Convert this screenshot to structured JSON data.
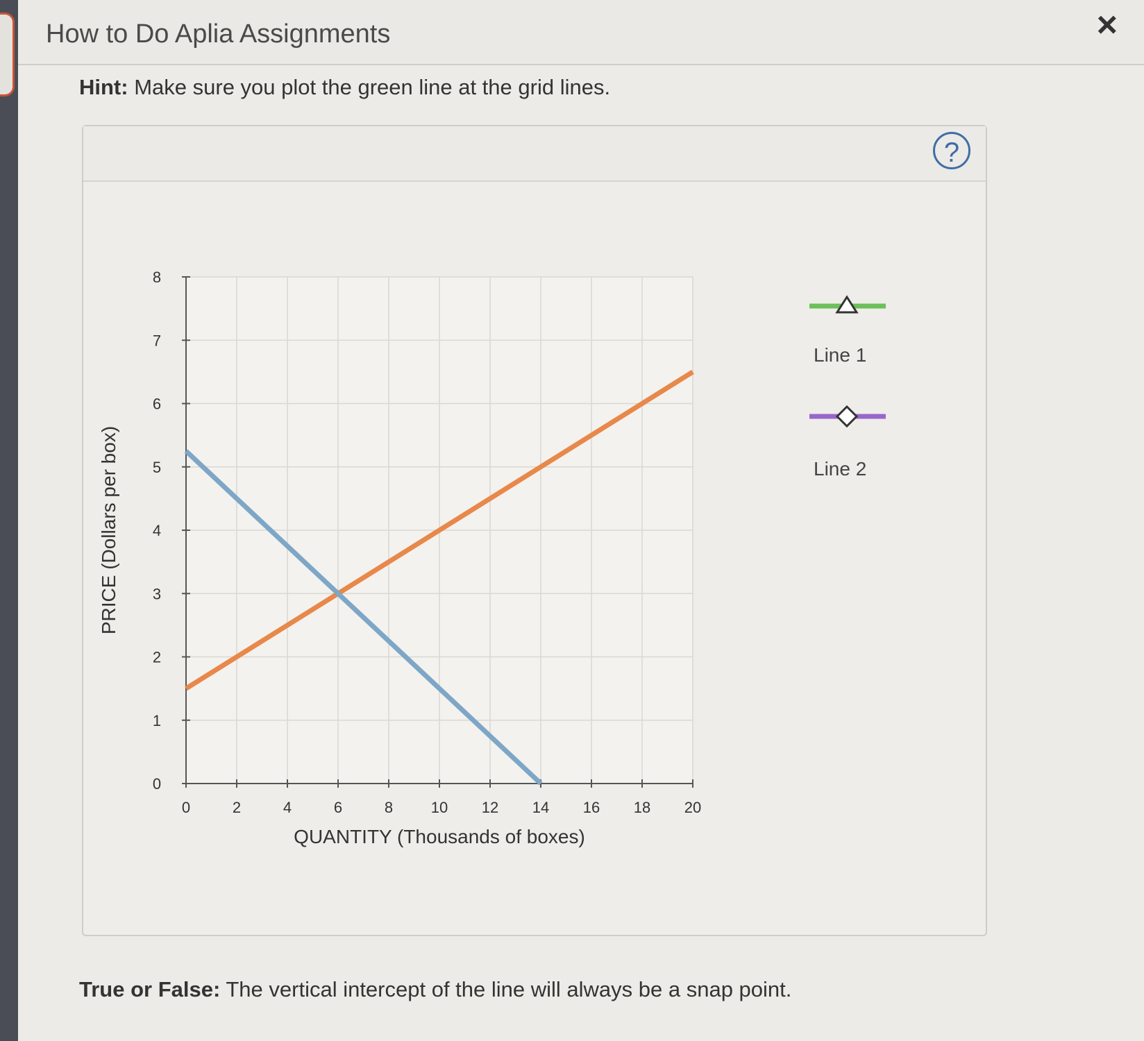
{
  "dialog": {
    "title": "How to Do Aplia Assignments",
    "close_label": "×",
    "hint_prefix": "Hint:",
    "hint_text": "Make sure you plot the green line at the grid lines.",
    "help_label": "?",
    "question_prefix": "True or False:",
    "question_text": "The vertical intercept of the line will always be a snap point."
  },
  "legend": {
    "items": [
      {
        "label": "Line 1",
        "color": "#6cbf5a",
        "marker": "triangle-icon"
      },
      {
        "label": "Line 2",
        "color": "#9966cc",
        "marker": "diamond-icon"
      }
    ]
  },
  "chart_data": {
    "type": "line",
    "xlabel": "QUANTITY (Thousands of boxes)",
    "ylabel": "PRICE (Dollars per box)",
    "xlim": [
      0,
      20
    ],
    "ylim": [
      0,
      8
    ],
    "x_ticks": [
      "0",
      "2",
      "4",
      "6",
      "8",
      "10",
      "12",
      "14",
      "16",
      "18",
      "20"
    ],
    "y_ticks": [
      "0",
      "1",
      "2",
      "3",
      "4",
      "5",
      "6",
      "7",
      "8"
    ],
    "grid": true,
    "series": [
      {
        "color": "#e8884a",
        "points": [
          [
            0,
            1.5
          ],
          [
            20,
            6.5
          ]
        ]
      },
      {
        "color": "#7ea6c6",
        "points": [
          [
            0,
            5.25
          ],
          [
            14,
            0
          ]
        ]
      }
    ]
  }
}
